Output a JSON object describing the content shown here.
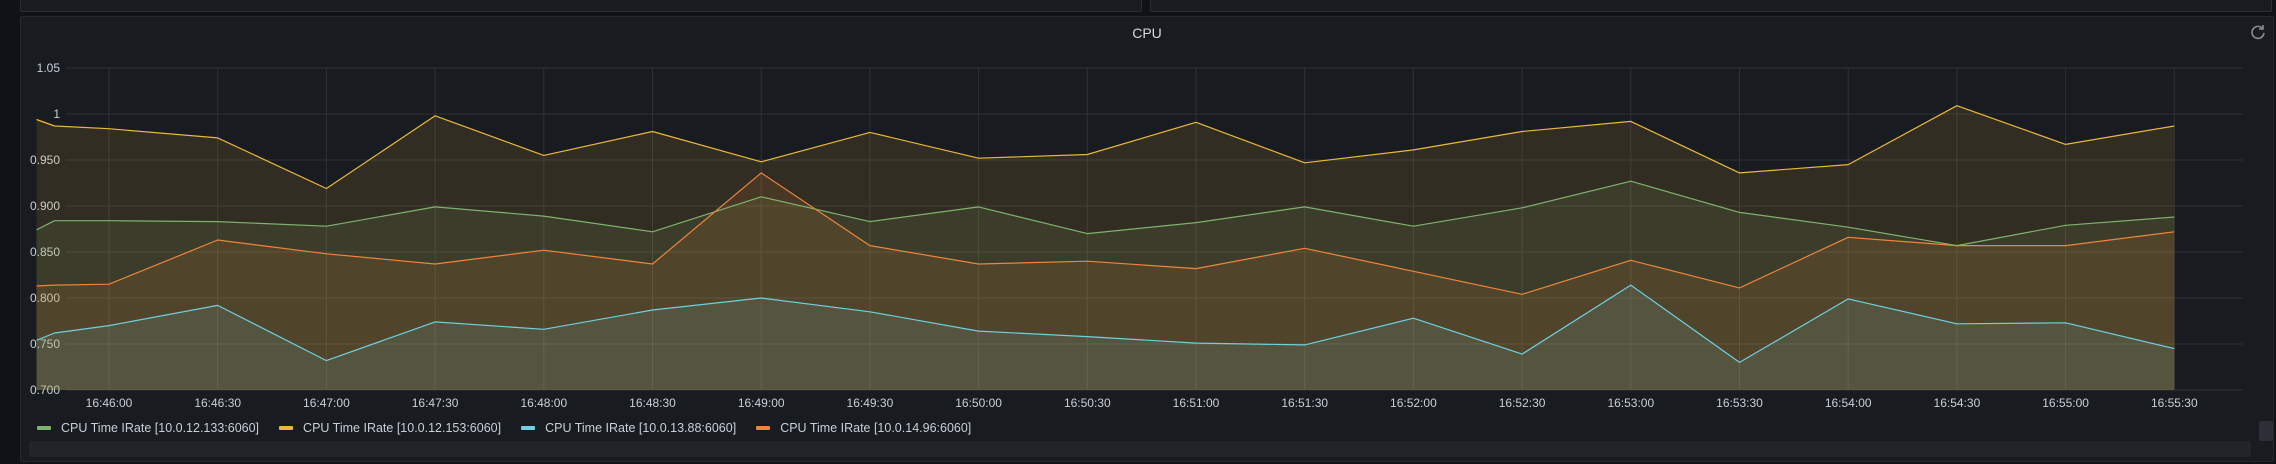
{
  "panel": {
    "title": "CPU"
  },
  "colors": {
    "background": "#181b1f",
    "grid": "#2f3136",
    "series": [
      "#7eb26d",
      "#eab839",
      "#6ed0e0",
      "#ef843c"
    ]
  },
  "chart_data": {
    "type": "area",
    "title": "CPU",
    "xlabel": "",
    "ylabel": "",
    "ylim": [
      0.7,
      1.05
    ],
    "yticks": [
      {
        "value": 0.7,
        "label": "0.700"
      },
      {
        "value": 0.75,
        "label": "0.750"
      },
      {
        "value": 0.8,
        "label": "0.800"
      },
      {
        "value": 0.85,
        "label": "0.850"
      },
      {
        "value": 0.9,
        "label": "0.900"
      },
      {
        "value": 0.95,
        "label": "0.950"
      },
      {
        "value": 1.0,
        "label": "1"
      },
      {
        "value": 1.05,
        "label": "1.05"
      }
    ],
    "xtick_labels": [
      "16:46:00",
      "16:46:30",
      "16:47:00",
      "16:47:30",
      "16:48:00",
      "16:48:30",
      "16:49:00",
      "16:49:30",
      "16:50:00",
      "16:50:30",
      "16:51:00",
      "16:51:30",
      "16:52:00",
      "16:52:30",
      "16:53:00",
      "16:53:30",
      "16:54:00",
      "16:54:30",
      "16:55:00",
      "16:55:30"
    ],
    "x": [
      "16:45:40",
      "16:45:45",
      "16:46:00",
      "16:46:30",
      "16:47:00",
      "16:47:30",
      "16:48:00",
      "16:48:30",
      "16:49:00",
      "16:49:30",
      "16:50:00",
      "16:50:30",
      "16:51:00",
      "16:51:30",
      "16:52:00",
      "16:52:30",
      "16:53:00",
      "16:53:30",
      "16:54:00",
      "16:54:30",
      "16:55:00",
      "16:55:30"
    ],
    "series": [
      {
        "name": "CPU Time IRate [10.0.12.133:6060]",
        "values": [
          0.874,
          0.884,
          0.884,
          0.883,
          0.878,
          0.899,
          0.889,
          0.872,
          0.91,
          0.883,
          0.899,
          0.87,
          0.882,
          0.899,
          0.878,
          0.898,
          0.927,
          0.893,
          0.877,
          0.857,
          0.879,
          0.888
        ]
      },
      {
        "name": "CPU Time IRate [10.0.12.153:6060]",
        "values": [
          0.994,
          0.987,
          0.984,
          0.974,
          0.919,
          0.998,
          0.955,
          0.981,
          0.948,
          0.98,
          0.952,
          0.956,
          0.991,
          0.947,
          0.961,
          0.981,
          0.992,
          0.936,
          0.945,
          1.009,
          0.967,
          0.987
        ]
      },
      {
        "name": "CPU Time IRate [10.0.13.88:6060]",
        "values": [
          0.754,
          0.762,
          0.77,
          0.792,
          0.732,
          0.774,
          0.766,
          0.787,
          0.8,
          0.785,
          0.764,
          0.758,
          0.751,
          0.749,
          0.778,
          0.739,
          0.814,
          0.73,
          0.799,
          0.772,
          0.773,
          0.745
        ]
      },
      {
        "name": "CPU Time IRate [10.0.14.96:6060]",
        "values": [
          0.813,
          0.814,
          0.815,
          0.863,
          0.848,
          0.837,
          0.852,
          0.837,
          0.936,
          0.857,
          0.837,
          0.84,
          0.832,
          0.854,
          0.829,
          0.804,
          0.841,
          0.811,
          0.866,
          0.857,
          0.857,
          0.872
        ]
      }
    ],
    "grid": true,
    "legend_position": "bottom-left"
  },
  "legend": {
    "items": [
      {
        "label": "CPU Time IRate [10.0.12.133:6060]",
        "color": "#7eb26d"
      },
      {
        "label": "CPU Time IRate [10.0.12.153:6060]",
        "color": "#eab839"
      },
      {
        "label": "CPU Time IRate [10.0.13.88:6060]",
        "color": "#6ed0e0"
      },
      {
        "label": "CPU Time IRate [10.0.14.96:6060]",
        "color": "#ef843c"
      }
    ]
  }
}
